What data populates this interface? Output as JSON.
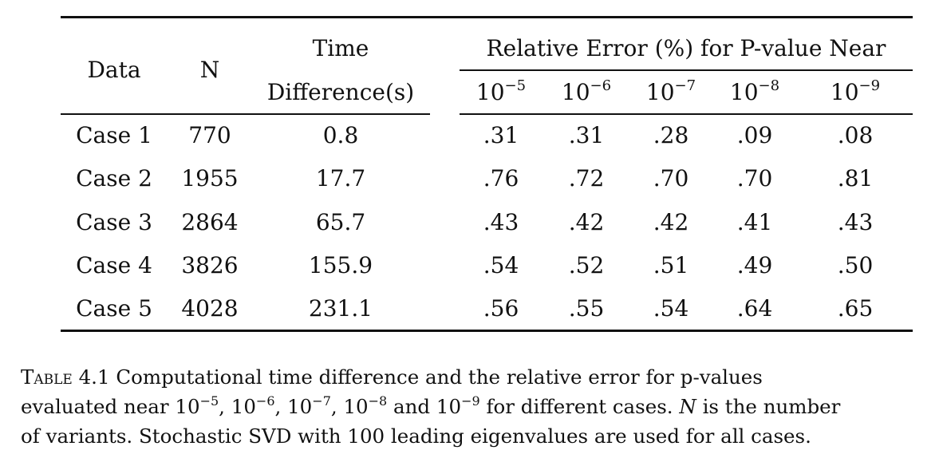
{
  "table": {
    "headers": {
      "data": "Data",
      "n": "N",
      "time_line1": "Time",
      "time_line2": "Difference(s)",
      "rel_error_group": "Relative Error (%) for P-value Near",
      "pvalue_base": "10",
      "pvalue_exponents": [
        "−5",
        "−6",
        "−7",
        "−8",
        "−9"
      ]
    },
    "rows": [
      {
        "case": "Case 1",
        "n": "770",
        "time": "0.8",
        "errors": [
          ".31",
          ".31",
          ".28",
          ".09",
          ".08"
        ]
      },
      {
        "case": "Case 2",
        "n": "1955",
        "time": "17.7",
        "errors": [
          ".76",
          ".72",
          ".70",
          ".70",
          ".81"
        ]
      },
      {
        "case": "Case 3",
        "n": "2864",
        "time": "65.7",
        "errors": [
          ".43",
          ".42",
          ".42",
          ".41",
          ".43"
        ]
      },
      {
        "case": "Case 4",
        "n": "3826",
        "time": "155.9",
        "errors": [
          ".54",
          ".52",
          ".51",
          ".49",
          ".50"
        ]
      },
      {
        "case": "Case 5",
        "n": "4028",
        "time": "231.1",
        "errors": [
          ".56",
          ".55",
          ".54",
          ".64",
          ".65"
        ]
      }
    ]
  },
  "caption": {
    "label": "Table 4.1",
    "text_a": " Computational time difference and the relative error for p-values",
    "text_b": "evaluated near ",
    "exp_base": "10",
    "exponents": [
      "−5",
      "−6",
      "−7",
      "−8",
      "−9"
    ],
    "sep_comma": ", ",
    "sep_and": " and ",
    "text_c": " for different cases. ",
    "n_symbol": "N",
    "text_d": " is the number",
    "text_e": "of variants. Stochastic SVD with 100 leading eigenvalues are used for all cases."
  }
}
